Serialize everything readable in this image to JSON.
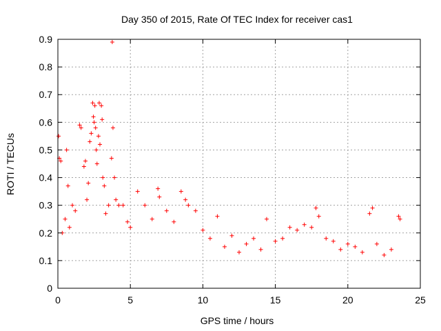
{
  "chart_data": {
    "type": "scatter",
    "title": "Day 350 of 2015, Rate Of TEC Index for receiver cas1",
    "xlabel": "GPS time / hours",
    "ylabel": "ROTI / TECUs",
    "xlim": [
      0,
      25
    ],
    "ylim": [
      0,
      0.9
    ],
    "xticks": [
      0,
      5,
      10,
      15,
      20,
      25
    ],
    "yticks": [
      0,
      0.1,
      0.2,
      0.3,
      0.4,
      0.5,
      0.6,
      0.7,
      0.8,
      0.9
    ],
    "grid": true,
    "marker": "+",
    "color": "#ff0000",
    "series": [
      {
        "name": "",
        "points": [
          [
            0.05,
            0.55
          ],
          [
            0.1,
            0.47
          ],
          [
            0.2,
            0.46
          ],
          [
            0.3,
            0.2
          ],
          [
            0.5,
            0.25
          ],
          [
            0.6,
            0.5
          ],
          [
            0.7,
            0.37
          ],
          [
            0.8,
            0.22
          ],
          [
            1.0,
            0.3
          ],
          [
            1.2,
            0.28
          ],
          [
            1.5,
            0.59
          ],
          [
            1.6,
            0.58
          ],
          [
            1.8,
            0.44
          ],
          [
            1.9,
            0.46
          ],
          [
            2.0,
            0.32
          ],
          [
            2.1,
            0.38
          ],
          [
            2.2,
            0.53
          ],
          [
            2.3,
            0.56
          ],
          [
            2.4,
            0.67
          ],
          [
            2.45,
            0.62
          ],
          [
            2.5,
            0.6
          ],
          [
            2.55,
            0.66
          ],
          [
            2.6,
            0.58
          ],
          [
            2.65,
            0.5
          ],
          [
            2.7,
            0.45
          ],
          [
            2.8,
            0.55
          ],
          [
            2.85,
            0.67
          ],
          [
            2.9,
            0.52
          ],
          [
            3.0,
            0.66
          ],
          [
            3.05,
            0.61
          ],
          [
            3.1,
            0.4
          ],
          [
            3.2,
            0.37
          ],
          [
            3.3,
            0.27
          ],
          [
            3.5,
            0.3
          ],
          [
            3.7,
            0.47
          ],
          [
            3.75,
            0.89
          ],
          [
            3.8,
            0.58
          ],
          [
            3.9,
            0.4
          ],
          [
            4.0,
            0.32
          ],
          [
            4.2,
            0.3
          ],
          [
            4.5,
            0.3
          ],
          [
            4.8,
            0.24
          ],
          [
            5.0,
            0.22
          ],
          [
            5.5,
            0.35
          ],
          [
            6.0,
            0.3
          ],
          [
            6.5,
            0.25
          ],
          [
            6.9,
            0.36
          ],
          [
            7.0,
            0.33
          ],
          [
            7.5,
            0.28
          ],
          [
            8.0,
            0.24
          ],
          [
            8.5,
            0.35
          ],
          [
            8.8,
            0.32
          ],
          [
            9.0,
            0.3
          ],
          [
            9.5,
            0.28
          ],
          [
            10.0,
            0.21
          ],
          [
            10.5,
            0.18
          ],
          [
            11.0,
            0.26
          ],
          [
            11.5,
            0.15
          ],
          [
            12.0,
            0.19
          ],
          [
            12.5,
            0.13
          ],
          [
            13.0,
            0.16
          ],
          [
            13.5,
            0.18
          ],
          [
            14.0,
            0.14
          ],
          [
            14.4,
            0.25
          ],
          [
            15.0,
            0.17
          ],
          [
            15.5,
            0.18
          ],
          [
            16.0,
            0.22
          ],
          [
            16.5,
            0.21
          ],
          [
            17.0,
            0.23
          ],
          [
            17.5,
            0.22
          ],
          [
            17.8,
            0.29
          ],
          [
            18.0,
            0.26
          ],
          [
            18.5,
            0.18
          ],
          [
            19.0,
            0.17
          ],
          [
            19.5,
            0.14
          ],
          [
            20.0,
            0.16
          ],
          [
            20.5,
            0.15
          ],
          [
            21.0,
            0.13
          ],
          [
            21.5,
            0.27
          ],
          [
            21.7,
            0.29
          ],
          [
            22.0,
            0.16
          ],
          [
            22.5,
            0.12
          ],
          [
            23.0,
            0.14
          ],
          [
            23.5,
            0.26
          ],
          [
            23.6,
            0.25
          ]
        ]
      }
    ]
  }
}
